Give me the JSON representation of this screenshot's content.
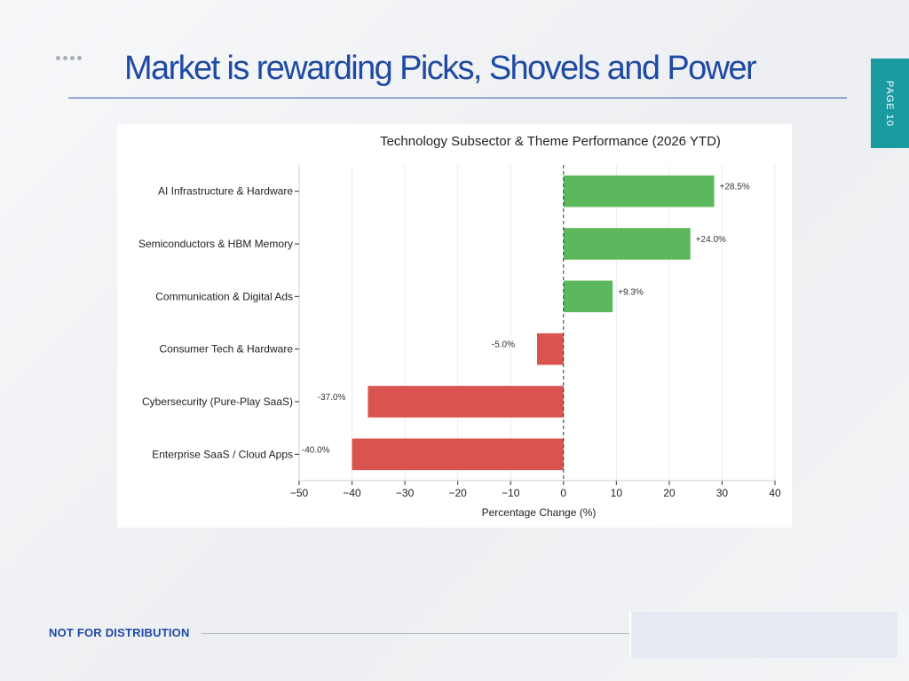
{
  "slide": {
    "title": "Market is rewarding Picks, Shovels and Power",
    "page_label": "PAGE 10",
    "footer_label": "NOT FOR DISTRIBUTION"
  },
  "chart_data": {
    "type": "bar",
    "orientation": "horizontal",
    "title": "Technology Subsector & Theme Performance (2026 YTD)",
    "xlabel": "Percentage Change (%)",
    "ylabel": "",
    "xlim": [
      -50,
      40
    ],
    "x_ticks": [
      -50,
      -40,
      -30,
      -20,
      -10,
      0,
      10,
      20,
      30,
      40
    ],
    "x_tick_labels": [
      "−50",
      "−40",
      "−30",
      "−20",
      "−10",
      "0",
      "10",
      "20",
      "30",
      "40"
    ],
    "grid": "vertical",
    "zero_line": "dashed",
    "categories": [
      "AI Infrastructure & Hardware",
      "Semiconductors & HBM Memory",
      "Communication & Digital Ads",
      "Consumer Tech & Hardware",
      "Cybersecurity (Pure-Play SaaS)",
      "Enterprise SaaS / Cloud Apps"
    ],
    "values": [
      28.5,
      24.0,
      9.3,
      -5.0,
      -37.0,
      -40.0
    ],
    "data_labels": [
      "+28.5%",
      "+24.0%",
      "+9.3%",
      "-5.0%",
      "-37.0%",
      "-40.0%"
    ],
    "colors": {
      "positive": "#5cb85c",
      "negative": "#d9534f"
    }
  }
}
